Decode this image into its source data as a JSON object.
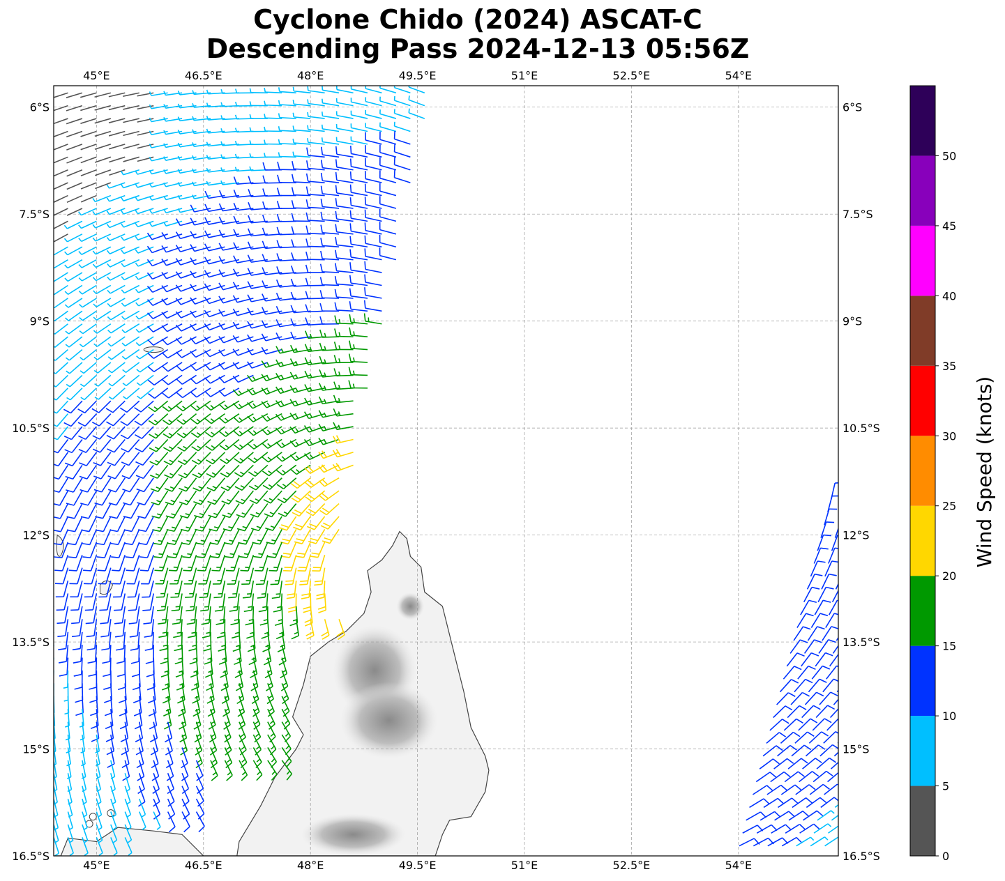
{
  "title": {
    "line1": "Cyclone Chido (2024) ASCAT-C",
    "line2": "Descending Pass 2024-12-13 05:56Z"
  },
  "map": {
    "lon_range": [
      44.4,
      55.4
    ],
    "lat_range": [
      -16.5,
      -5.7
    ],
    "lon_ticks": [
      {
        "value": 45.0,
        "label": "45°E"
      },
      {
        "value": 46.5,
        "label": "46.5°E"
      },
      {
        "value": 48.0,
        "label": "48°E"
      },
      {
        "value": 49.5,
        "label": "49.5°E"
      },
      {
        "value": 51.0,
        "label": "51°E"
      },
      {
        "value": 52.5,
        "label": "52.5°E"
      },
      {
        "value": 54.0,
        "label": "54°E"
      }
    ],
    "lat_ticks": [
      {
        "value": -6.0,
        "label": "6°S"
      },
      {
        "value": -7.5,
        "label": "7.5°S"
      },
      {
        "value": -9.0,
        "label": "9°S"
      },
      {
        "value": -10.5,
        "label": "10.5°S"
      },
      {
        "value": -12.0,
        "label": "12°S"
      },
      {
        "value": -13.5,
        "label": "13.5°S"
      },
      {
        "value": -15.0,
        "label": "15°S"
      },
      {
        "value": -16.5,
        "label": "16.5°S"
      }
    ],
    "gridlines": true,
    "land_color": "#f2f2f2",
    "coast_color": "#444444"
  },
  "colorbar": {
    "label": "Wind Speed (knots)",
    "bins": [
      {
        "min": 0,
        "max": 5,
        "color": "#555555"
      },
      {
        "min": 5,
        "max": 10,
        "color": "#00bfff"
      },
      {
        "min": 10,
        "max": 15,
        "color": "#0033ff"
      },
      {
        "min": 15,
        "max": 20,
        "color": "#009900"
      },
      {
        "min": 20,
        "max": 25,
        "color": "#ffd700"
      },
      {
        "min": 25,
        "max": 30,
        "color": "#ff8c00"
      },
      {
        "min": 30,
        "max": 35,
        "color": "#ff0000"
      },
      {
        "min": 35,
        "max": 40,
        "color": "#803c28"
      },
      {
        "min": 40,
        "max": 45,
        "color": "#ff00ff"
      },
      {
        "min": 45,
        "max": 50,
        "color": "#8800bb"
      },
      {
        "min": 50,
        "max": 55,
        "color": "#2e0059"
      }
    ],
    "tick_labels": [
      "0",
      "5",
      "10",
      "15",
      "20",
      "25",
      "30",
      "35",
      "40",
      "45",
      "50"
    ]
  }
}
